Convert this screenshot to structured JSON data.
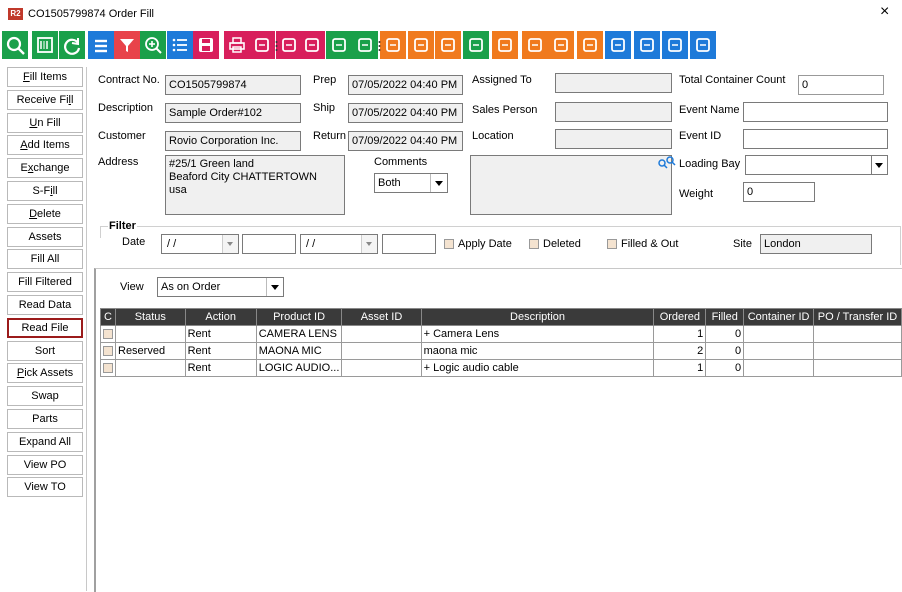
{
  "window": {
    "badge": "R2",
    "title": "CO1505799874 Order Fill",
    "close_glyph": "×"
  },
  "toolbar": {
    "buttons": [
      {
        "icon": "search-icon",
        "color": "#1aa04a"
      },
      {
        "icon": "scan-barcode-icon",
        "color": "#1aa04a"
      },
      {
        "icon": "refresh-icon",
        "color": "#1aa04a"
      },
      {
        "icon": "list-icon",
        "color": "#1e7ad9"
      },
      {
        "icon": "filter-icon",
        "color": "#e8434a"
      },
      {
        "icon": "zoom-in-icon",
        "color": "#1aa04a"
      },
      {
        "icon": "list-lines-icon",
        "color": "#1e7ad9"
      },
      {
        "icon": "save-icon",
        "color": "#d81f5c"
      },
      {
        "icon": "print-icon",
        "color": "#d81f5c"
      },
      {
        "icon": "print-preview-icon",
        "color": "#d81f5c"
      },
      {
        "icon": "print-label-icon",
        "color": "#d81f5c"
      },
      {
        "icon": "print-tag-icon",
        "color": "#d81f5c"
      },
      {
        "icon": "print-stack-icon",
        "color": "#1aa04a"
      },
      {
        "icon": "print-layers-icon",
        "color": "#1aa04a"
      },
      {
        "icon": "print-alert-icon",
        "color": "#f07a1e"
      },
      {
        "icon": "warning-icon",
        "color": "#f07a1e"
      },
      {
        "icon": "open-box-icon",
        "color": "#f07a1e"
      },
      {
        "icon": "expand-icon",
        "color": "#1aa04a"
      },
      {
        "icon": "house-meter-icon",
        "color": "#f07a1e"
      },
      {
        "icon": "delivery-truck-icon",
        "color": "#f07a1e"
      },
      {
        "icon": "truck-search-icon",
        "color": "#f07a1e"
      },
      {
        "icon": "truck-dispatch-icon",
        "color": "#f07a1e"
      },
      {
        "icon": "document-icon",
        "color": "#1e7ad9"
      },
      {
        "icon": "alert-triangle-icon",
        "color": "#1e7ad9"
      },
      {
        "icon": "hash-icon",
        "color": "#1e7ad9"
      },
      {
        "icon": "gauge-icon",
        "color": "#1e7ad9"
      }
    ]
  },
  "sidebar": {
    "items": [
      {
        "pre": "",
        "u": "F",
        "post": "ill Items"
      },
      {
        "pre": "Receive Fi",
        "u": "l",
        "post": "l"
      },
      {
        "pre": "",
        "u": "U",
        "post": "n Fill"
      },
      {
        "pre": "",
        "u": "A",
        "post": "dd Items"
      },
      {
        "pre": "E",
        "u": "x",
        "post": "change"
      },
      {
        "pre": "S-F",
        "u": "i",
        "post": "ll"
      },
      {
        "pre": "",
        "u": "D",
        "post": "elete"
      },
      {
        "pre": "Assets",
        "u": "",
        "post": ""
      },
      {
        "pre": "Fill  All",
        "u": "",
        "post": ""
      },
      {
        "pre": "Fill Filtered",
        "u": "",
        "post": ""
      },
      {
        "pre": "Read Data",
        "u": "",
        "post": ""
      },
      {
        "pre": "Read File",
        "u": "",
        "post": ""
      },
      {
        "pre": "Sort",
        "u": "",
        "post": ""
      },
      {
        "pre": "",
        "u": "P",
        "post": "ick Assets"
      },
      {
        "pre": "Swap",
        "u": "",
        "post": ""
      },
      {
        "pre": "Parts",
        "u": "",
        "post": ""
      },
      {
        "pre": "Expand All",
        "u": "",
        "post": ""
      },
      {
        "pre": "View PO",
        "u": "",
        "post": ""
      },
      {
        "pre": "View TO",
        "u": "",
        "post": ""
      }
    ]
  },
  "form": {
    "contract_label": "Contract No.",
    "contract_value": "CO1505799874",
    "description_label": "Description",
    "description_value": "Sample Order#102",
    "customer_label": "Customer",
    "customer_value": "Rovio Corporation Inc.",
    "address_label": "Address",
    "address_lines": [
      "#25/1 Green land",
      "Beaford City CHATTERTOWN",
      "usa"
    ],
    "prep_label": "Prep",
    "prep_value": "07/05/2022 04:40 PM",
    "ship_label": "Ship",
    "ship_value": "07/05/2022 04:40 PM",
    "return_label": "Return",
    "return_value": "07/09/2022 04:40 PM",
    "comments_label": "Comments",
    "comments_filter": "Both",
    "assigned_label": "Assigned To",
    "assigned_value": "",
    "sales_label": "Sales Person",
    "sales_value": "",
    "location_label": "Location",
    "location_value": "",
    "total_container_label": "Total Container Count",
    "total_container_value": "0",
    "event_name_label": "Event Name",
    "event_name_value": "",
    "event_id_label": "Event ID",
    "event_id_value": "",
    "loading_bay_label": "Loading Bay",
    "loading_bay_value": "",
    "weight_label": "Weight",
    "weight_value": "0"
  },
  "filter": {
    "legend": "Filter",
    "date_label": "Date",
    "date_from": "/ /",
    "date_to": "/ /",
    "apply_date_label": "Apply Date",
    "deleted_label": "Deleted",
    "filled_out_label": "Filled & Out",
    "site_label": "Site",
    "site_value": "London"
  },
  "view": {
    "label": "View",
    "value": "As on Order"
  },
  "grid": {
    "columns": [
      "C",
      "Status",
      "Action",
      "Product ID",
      "Asset ID",
      "Description",
      "Ordered",
      "Filled",
      "Container ID",
      "PO / Transfer ID"
    ],
    "rows": [
      {
        "status": "",
        "action": "Rent",
        "product_id": "CAMERA LENS",
        "asset_id": "",
        "description": "+ Camera Lens",
        "ordered": "1",
        "filled": "0",
        "container_id": "",
        "po": ""
      },
      {
        "status": "Reserved",
        "action": "Rent",
        "product_id": "MAONA MIC",
        "asset_id": "",
        "description": "maona mic",
        "ordered": "2",
        "filled": "0",
        "container_id": "",
        "po": ""
      },
      {
        "status": "",
        "action": "Rent",
        "product_id": "LOGIC AUDIO...",
        "asset_id": "",
        "description": "+ Logic audio cable",
        "ordered": "1",
        "filled": "0",
        "container_id": "",
        "po": ""
      }
    ]
  }
}
